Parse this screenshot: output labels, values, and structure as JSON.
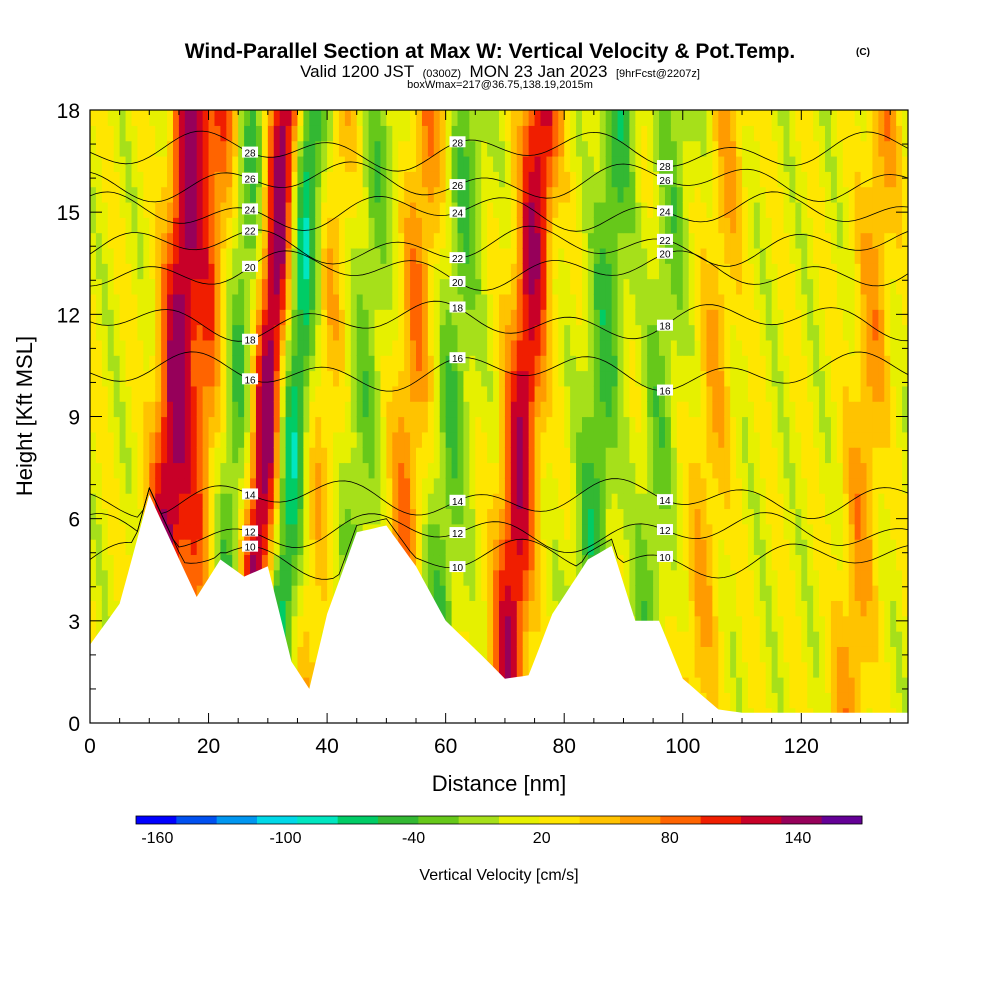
{
  "title": {
    "main": "Wind-Parallel Section at Max W: Vertical Velocity & Pot.Temp.",
    "copyright": "(C)",
    "valid_prefix": "Valid 1200 JST",
    "valid_z": "(0300Z)",
    "valid_date": "MON 23 Jan 2023",
    "forecast": "[9hrFcst@2207z]",
    "box": "boxWmax=217@36.75,138.19,2015m"
  },
  "chart_data": {
    "type": "heatmap",
    "xlabel": "Distance [nm]",
    "ylabel": "Height [Kft MSL]",
    "xlim": [
      0,
      138
    ],
    "ylim": [
      0,
      18
    ],
    "x_ticks": [
      0,
      20,
      40,
      60,
      80,
      100,
      120
    ],
    "y_ticks": [
      0,
      3,
      6,
      9,
      12,
      15,
      18
    ],
    "colorbar": {
      "title": "Vertical Velocity [cm/s]",
      "min": -170,
      "max": 170,
      "step": 20,
      "tick_values": [
        -160,
        -100,
        -40,
        20,
        80,
        140
      ],
      "tick_labels": [
        "-160",
        "-100",
        "-40",
        "20",
        "80",
        "140"
      ],
      "colors": [
        "#0000ff",
        "#0050f0",
        "#0096f0",
        "#00d8e8",
        "#00e6c0",
        "#00cc66",
        "#33b833",
        "#66c81a",
        "#a6e01a",
        "#e6f000",
        "#ffe600",
        "#ffc300",
        "#ff9b00",
        "#ff6400",
        "#f01e00",
        "#c80028",
        "#96005a",
        "#640096"
      ]
    },
    "terrain": [
      [
        0,
        2.3
      ],
      [
        5,
        3.5
      ],
      [
        10,
        6.7
      ],
      [
        14,
        5.2
      ],
      [
        18,
        3.7
      ],
      [
        22,
        4.8
      ],
      [
        26,
        4.3
      ],
      [
        30,
        4.6
      ],
      [
        34,
        1.8
      ],
      [
        37,
        1.0
      ],
      [
        40,
        3.2
      ],
      [
        45,
        5.6
      ],
      [
        50,
        5.8
      ],
      [
        55,
        4.6
      ],
      [
        60,
        3.0
      ],
      [
        66,
        2.0
      ],
      [
        70,
        1.3
      ],
      [
        74,
        1.4
      ],
      [
        78,
        3.2
      ],
      [
        84,
        4.8
      ],
      [
        88,
        5.2
      ],
      [
        92,
        3.0
      ],
      [
        96,
        3.0
      ],
      [
        100,
        1.3
      ],
      [
        106,
        0.4
      ],
      [
        110,
        0.3
      ],
      [
        138,
        0.3
      ]
    ],
    "w_field": {
      "background_w": 25,
      "x_features": [
        {
          "x": 13,
          "w": 130
        },
        {
          "x": 18,
          "w": 70
        },
        {
          "x": 24,
          "w": -60
        },
        {
          "x": 29,
          "w": 160
        },
        {
          "x": 33,
          "w": -110
        },
        {
          "x": 38,
          "w": 40
        },
        {
          "x": 45,
          "w": -40
        },
        {
          "x": 53,
          "w": 60
        },
        {
          "x": 60,
          "w": -50
        },
        {
          "x": 72,
          "w": 120
        },
        {
          "x": 85,
          "w": -60
        },
        {
          "x": 95,
          "w": -40
        },
        {
          "x": 104,
          "w": 40
        },
        {
          "x": 118,
          "w": 0
        },
        {
          "x": 130,
          "w": 50
        }
      ]
    },
    "theta_contours": [
      {
        "label": "10",
        "base_height": 4.8
      },
      {
        "label": "12",
        "base_height": 5.6
      },
      {
        "label": "14",
        "base_height": 6.6
      },
      {
        "label": "16",
        "base_height": 10.3
      },
      {
        "label": "18",
        "base_height": 11.8
      },
      {
        "label": "20",
        "base_height": 13.3
      },
      {
        "label": "22",
        "base_height": 14.0
      },
      {
        "label": "24",
        "base_height": 15.0
      },
      {
        "label": "26",
        "base_height": 15.9
      },
      {
        "label": "28",
        "base_height": 16.8
      }
    ]
  }
}
